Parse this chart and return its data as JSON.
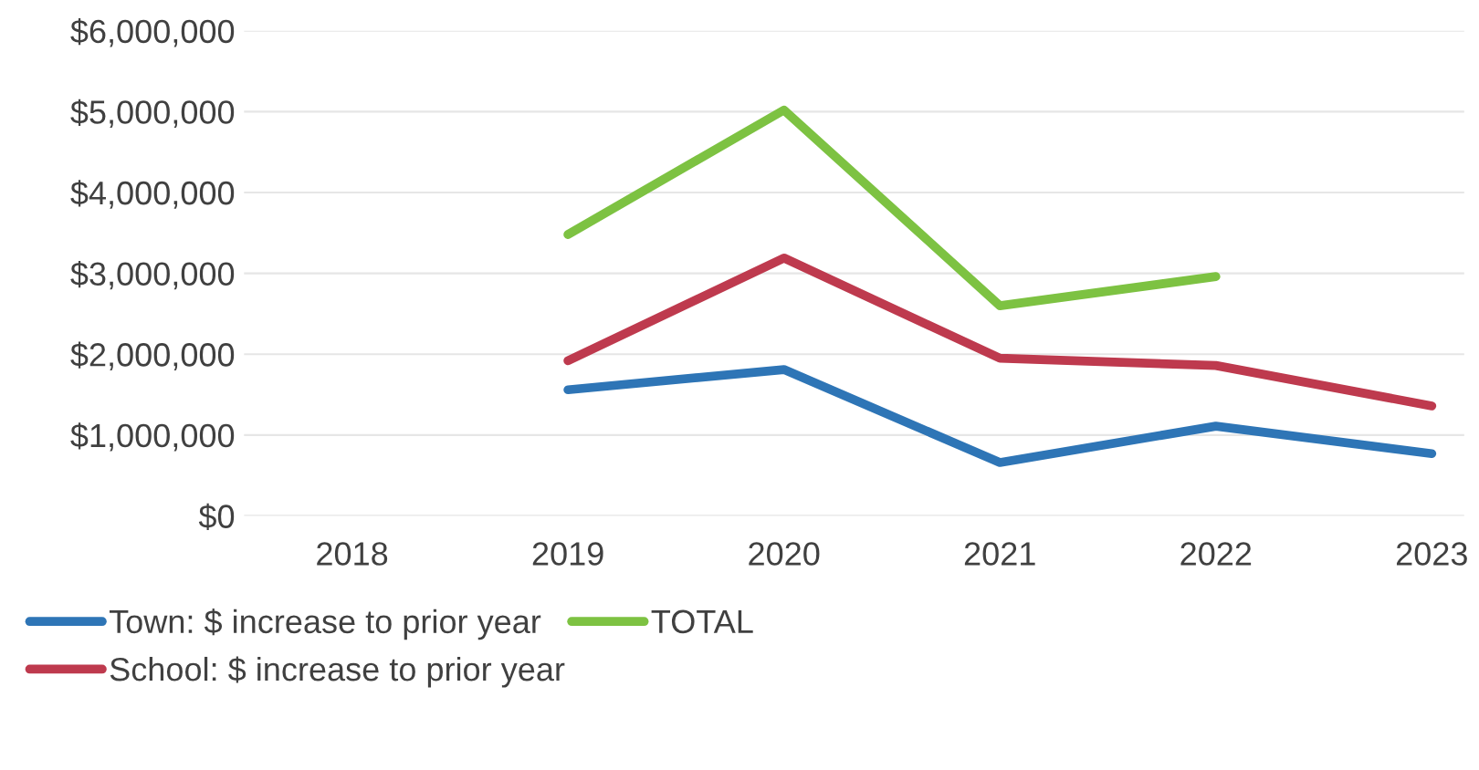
{
  "chart_data": {
    "type": "line",
    "categories": [
      "2018",
      "2019",
      "2020",
      "2021",
      "2022",
      "2023"
    ],
    "series": [
      {
        "name": "Town: $ increase to prior year",
        "color": "#2e75b6",
        "values": [
          null,
          1560000,
          1810000,
          660000,
          1110000,
          770000
        ]
      },
      {
        "name": "School: $ increase to prior year",
        "color": "#be3a4e",
        "values": [
          null,
          1920000,
          3190000,
          1950000,
          1860000,
          1360000
        ]
      },
      {
        "name": "TOTAL",
        "color": "#7dc242",
        "values": [
          null,
          3480000,
          5020000,
          2600000,
          2960000,
          null
        ]
      }
    ],
    "ylim": [
      0,
      6000000
    ],
    "yticks": [
      {
        "value": 0,
        "label": "$0"
      },
      {
        "value": 1000000,
        "label": "$1,000,000"
      },
      {
        "value": 2000000,
        "label": "$2,000,000"
      },
      {
        "value": 3000000,
        "label": "$3,000,000"
      },
      {
        "value": 4000000,
        "label": "$4,000,000"
      },
      {
        "value": 5000000,
        "label": "$5,000,000"
      },
      {
        "value": 6000000,
        "label": "$6,000,000"
      }
    ],
    "grid": "y",
    "legend": "bottom",
    "marker": "none",
    "line_style": "solid"
  }
}
